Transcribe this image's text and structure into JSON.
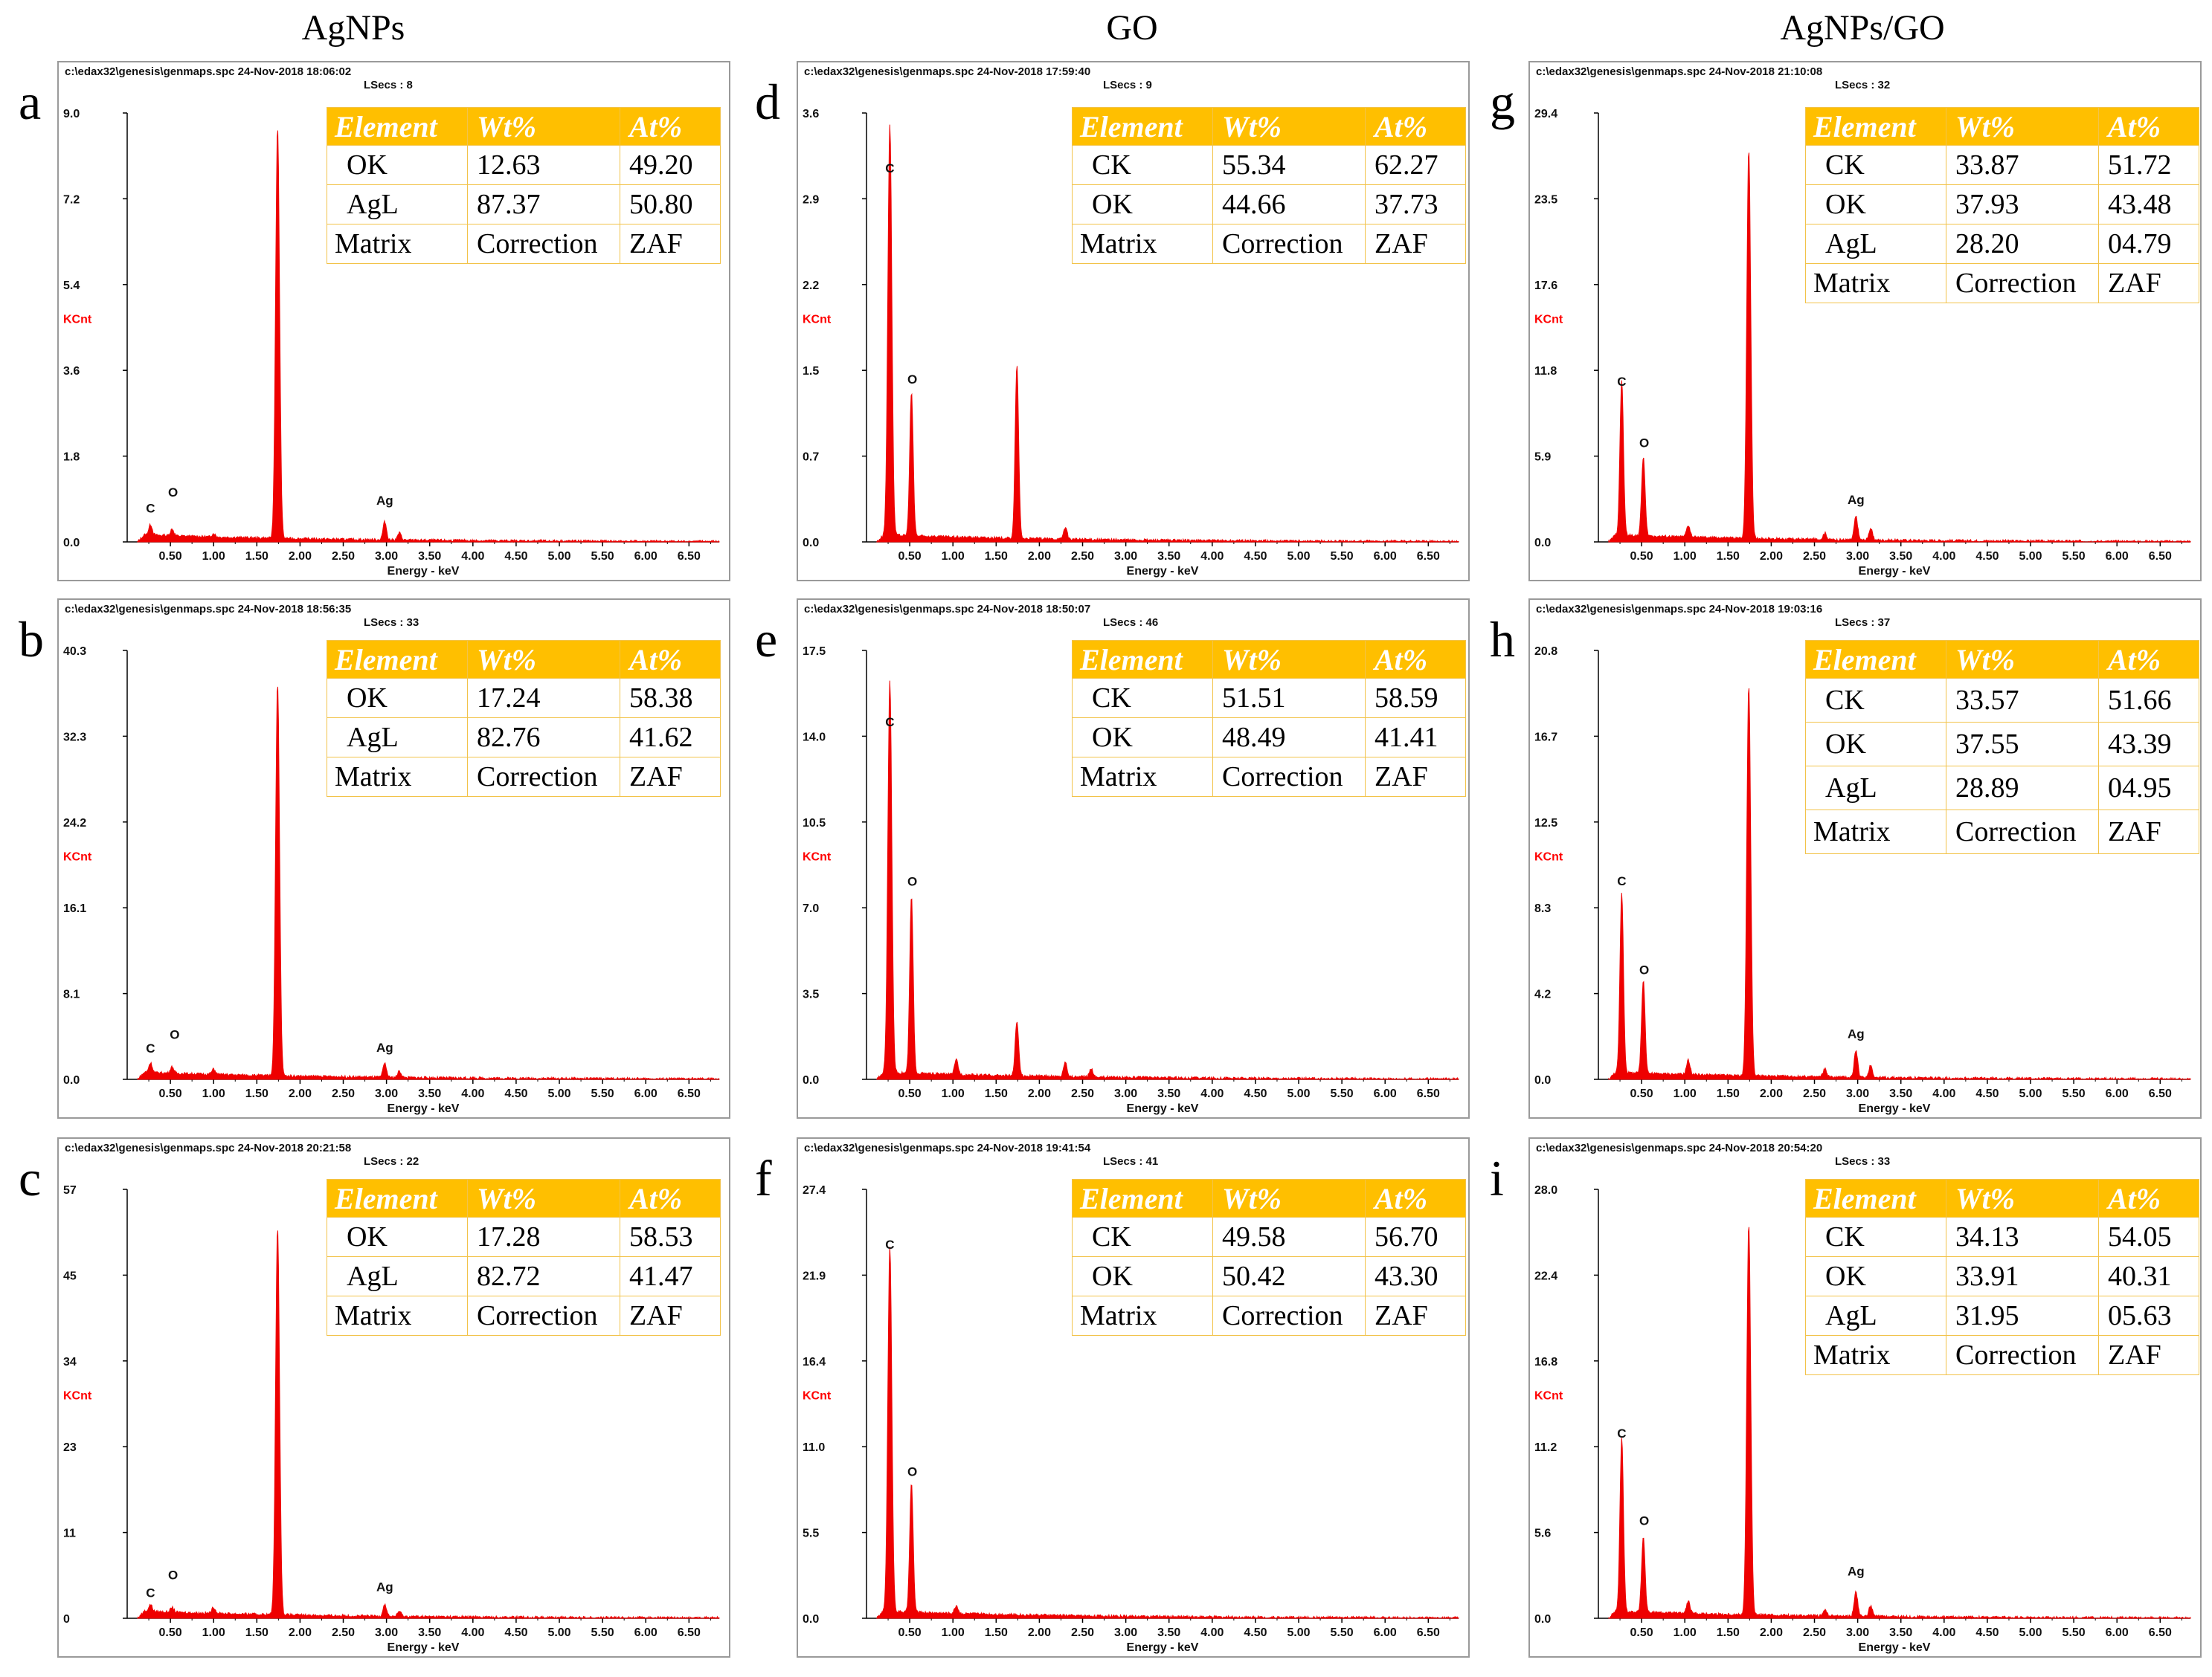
{
  "column_titles": [
    "AgNPs",
    "GO",
    "AgNPs/GO"
  ],
  "axis": {
    "xlabel": "Energy - keV",
    "ylabel": "KCnt",
    "xticks": [
      "0.50",
      "1.00",
      "1.50",
      "2.00",
      "2.50",
      "3.00",
      "3.50",
      "4.00",
      "4.50",
      "5.00",
      "5.50",
      "6.00",
      "6.50"
    ]
  },
  "table_headers": [
    "Element",
    "Wt%",
    "At%"
  ],
  "colors": {
    "spectrum": "#ee0000",
    "table_header": "#ffbf00",
    "table_border": "#f2c34a",
    "ylabel": "#ff0000"
  },
  "chart_data": [
    {
      "id": "a",
      "letter": "a",
      "type": "area",
      "header": "c:\\edax32\\genesis\\genmaps.spc  24-Nov-2018 18:06:02",
      "lsecs": "LSecs : 8",
      "xlabel": "Energy - keV",
      "ylabel": "KCnt",
      "xlim": [
        0,
        6.85
      ],
      "ylim": [
        0,
        9.0
      ],
      "yticks": [
        "0.0",
        "1.8",
        "3.6",
        "5.4",
        "7.2",
        "9.0"
      ],
      "peaks": [
        {
          "label": "C",
          "x": 0.27,
          "y": 0.22
        },
        {
          "label": "O",
          "x": 0.52,
          "y": 0.14
        },
        {
          "label": "",
          "x": 1.0,
          "y": 0.07
        },
        {
          "label": "",
          "x": 1.74,
          "y": 8.6
        },
        {
          "label": "Ag",
          "x": 2.98,
          "y": 0.38
        },
        {
          "label": "",
          "x": 3.15,
          "y": 0.15
        }
      ],
      "peak_labels": [
        {
          "text": "C",
          "x": 0.27,
          "y": 0.62
        },
        {
          "text": "O",
          "x": 0.53,
          "y": 0.95
        },
        {
          "text": "Ag",
          "x": 2.98,
          "y": 0.78
        }
      ],
      "rows": [
        [
          "OK",
          "12.63",
          "49.20"
        ],
        [
          "AgL",
          "87.37",
          "50.80"
        ],
        [
          "Matrix",
          "Correction",
          "ZAF"
        ]
      ]
    },
    {
      "id": "b",
      "letter": "b",
      "type": "area",
      "header": "c:\\edax32\\genesis\\genmaps.spc  24-Nov-2018 18:56:35",
      "lsecs": "LSecs : 33",
      "xlabel": "Energy - keV",
      "ylabel": "KCnt",
      "xlim": [
        0,
        6.85
      ],
      "ylim": [
        0,
        40.3
      ],
      "yticks": [
        "0.0",
        "8.1",
        "16.1",
        "24.2",
        "32.3",
        "40.3"
      ],
      "peaks": [
        {
          "label": "C",
          "x": 0.27,
          "y": 0.9
        },
        {
          "label": "O",
          "x": 0.52,
          "y": 0.6
        },
        {
          "label": "",
          "x": 1.0,
          "y": 0.5
        },
        {
          "label": "",
          "x": 1.74,
          "y": 36.8
        },
        {
          "label": "Ag",
          "x": 2.98,
          "y": 1.3
        },
        {
          "label": "",
          "x": 3.15,
          "y": 0.6
        }
      ],
      "peak_labels": [
        {
          "text": "C",
          "x": 0.27,
          "y": 2.5
        },
        {
          "text": "O",
          "x": 0.55,
          "y": 3.8
        },
        {
          "text": "Ag",
          "x": 2.98,
          "y": 2.6
        }
      ],
      "rows": [
        [
          "OK",
          "17.24",
          "58.38"
        ],
        [
          "AgL",
          "82.76",
          "41.62"
        ],
        [
          "Matrix",
          "Correction",
          "ZAF"
        ]
      ]
    },
    {
      "id": "c",
      "letter": "c",
      "type": "area",
      "header": "c:\\edax32\\genesis\\genmaps.spc  24-Nov-2018 20:21:58",
      "lsecs": "LSecs : 22",
      "xlabel": "Energy - keV",
      "ylabel": "KCnt",
      "xlim": [
        0,
        6.85
      ],
      "ylim": [
        0,
        57
      ],
      "yticks": [
        "0",
        "11",
        "23",
        "34",
        "45",
        "57"
      ],
      "peaks": [
        {
          "label": "C",
          "x": 0.27,
          "y": 0.9
        },
        {
          "label": "O",
          "x": 0.52,
          "y": 0.6
        },
        {
          "label": "",
          "x": 1.0,
          "y": 0.8
        },
        {
          "label": "",
          "x": 1.74,
          "y": 51.5
        },
        {
          "label": "Ag",
          "x": 2.98,
          "y": 1.6
        },
        {
          "label": "",
          "x": 3.15,
          "y": 0.7
        }
      ],
      "peak_labels": [
        {
          "text": "C",
          "x": 0.27,
          "y": 2.8
        },
        {
          "text": "O",
          "x": 0.53,
          "y": 5.2
        },
        {
          "text": "Ag",
          "x": 2.98,
          "y": 3.6
        }
      ],
      "rows": [
        [
          "OK",
          "17.28",
          "58.53"
        ],
        [
          "AgL",
          "82.72",
          "41.47"
        ],
        [
          "Matrix",
          "Correction",
          "ZAF"
        ]
      ]
    },
    {
      "id": "d",
      "letter": "d",
      "type": "area",
      "header": "c:\\edax32\\genesis\\genmaps.spc  24-Nov-2018 17:59:40",
      "lsecs": "LSecs : 9",
      "xlabel": "Energy - keV",
      "ylabel": "KCnt",
      "xlim": [
        0,
        6.85
      ],
      "ylim": [
        0,
        3.6
      ],
      "yticks": [
        "0.0",
        "0.7",
        "1.5",
        "2.2",
        "2.9",
        "3.6"
      ],
      "peaks": [
        {
          "label": "C",
          "x": 0.27,
          "y": 3.45
        },
        {
          "label": "O",
          "x": 0.52,
          "y": 1.2
        },
        {
          "label": "",
          "x": 1.74,
          "y": 1.45
        },
        {
          "label": "",
          "x": 2.3,
          "y": 0.1
        }
      ],
      "peak_labels": [
        {
          "text": "C",
          "x": 0.27,
          "y": 3.1
        },
        {
          "text": "O",
          "x": 0.53,
          "y": 1.33
        }
      ],
      "rows": [
        [
          "CK",
          "55.34",
          "62.27"
        ],
        [
          "OK",
          "44.66",
          "37.73"
        ],
        [
          "Matrix",
          "Correction",
          "ZAF"
        ]
      ]
    },
    {
      "id": "e",
      "letter": "e",
      "type": "area",
      "header": "c:\\edax32\\genesis\\genmaps.spc  24-Nov-2018 18:50:07",
      "lsecs": "LSecs : 46",
      "xlabel": "Energy - keV",
      "ylabel": "KCnt",
      "xlim": [
        0,
        6.85
      ],
      "ylim": [
        0,
        17.5
      ],
      "yticks": [
        "0.0",
        "3.5",
        "7.0",
        "10.5",
        "14.0",
        "17.5"
      ],
      "peaks": [
        {
          "label": "C",
          "x": 0.27,
          "y": 16.0
        },
        {
          "label": "O",
          "x": 0.52,
          "y": 7.2
        },
        {
          "label": "",
          "x": 1.04,
          "y": 0.6
        },
        {
          "label": "",
          "x": 1.74,
          "y": 2.2
        },
        {
          "label": "",
          "x": 2.3,
          "y": 0.6
        },
        {
          "label": "",
          "x": 2.6,
          "y": 0.35
        }
      ],
      "peak_labels": [
        {
          "text": "C",
          "x": 0.27,
          "y": 14.4
        },
        {
          "text": "O",
          "x": 0.53,
          "y": 7.9
        }
      ],
      "rows": [
        [
          "CK",
          "51.51",
          "58.59"
        ],
        [
          "OK",
          "48.49",
          "41.41"
        ],
        [
          "Matrix",
          "Correction",
          "ZAF"
        ]
      ]
    },
    {
      "id": "f",
      "letter": "f",
      "type": "area",
      "header": "c:\\edax32\\genesis\\genmaps.spc  24-Nov-2018 19:41:54",
      "lsecs": "LSecs : 41",
      "xlabel": "Energy - keV",
      "ylabel": "KCnt",
      "xlim": [
        0,
        6.85
      ],
      "ylim": [
        0,
        27.4
      ],
      "yticks": [
        "0.0",
        "5.5",
        "11.0",
        "16.4",
        "21.9",
        "27.4"
      ],
      "peaks": [
        {
          "label": "C",
          "x": 0.27,
          "y": 23.3
        },
        {
          "label": "O",
          "x": 0.52,
          "y": 8.2
        },
        {
          "label": "",
          "x": 1.04,
          "y": 0.5
        }
      ],
      "peak_labels": [
        {
          "text": "C",
          "x": 0.27,
          "y": 23.6
        },
        {
          "text": "O",
          "x": 0.53,
          "y": 9.1
        }
      ],
      "rows": [
        [
          "CK",
          "49.58",
          "56.70"
        ],
        [
          "OK",
          "50.42",
          "43.30"
        ],
        [
          "Matrix",
          "Correction",
          "ZAF"
        ]
      ]
    },
    {
      "id": "g",
      "letter": "g",
      "type": "area",
      "header": "c:\\edax32\\genesis\\genmaps.spc  24-Nov-2018 21:10:08",
      "lsecs": "LSecs : 32",
      "xlabel": "Energy - keV",
      "ylabel": "KCnt",
      "xlim": [
        0,
        6.85
      ],
      "ylim": [
        0,
        29.4
      ],
      "yticks": [
        "0.0",
        "5.9",
        "11.8",
        "17.6",
        "23.5",
        "29.4"
      ],
      "peaks": [
        {
          "label": "C",
          "x": 0.27,
          "y": 10.6
        },
        {
          "label": "O",
          "x": 0.52,
          "y": 5.4
        },
        {
          "label": "",
          "x": 1.04,
          "y": 0.8
        },
        {
          "label": "",
          "x": 1.74,
          "y": 26.7
        },
        {
          "label": "",
          "x": 2.62,
          "y": 0.45
        },
        {
          "label": "Ag",
          "x": 2.98,
          "y": 1.6
        },
        {
          "label": "",
          "x": 3.15,
          "y": 0.8
        }
      ],
      "peak_labels": [
        {
          "text": "C",
          "x": 0.27,
          "y": 10.7
        },
        {
          "text": "O",
          "x": 0.53,
          "y": 6.5
        },
        {
          "text": "Ag",
          "x": 2.98,
          "y": 2.6
        }
      ],
      "rows": [
        [
          "CK",
          "33.87",
          "51.72"
        ],
        [
          "OK",
          "37.93",
          "43.48"
        ],
        [
          "AgL",
          "28.20",
          "04.79"
        ],
        [
          "Matrix",
          "Correction",
          "ZAF"
        ]
      ]
    },
    {
      "id": "h",
      "letter": "h",
      "type": "area",
      "header": "c:\\edax32\\genesis\\genmaps.spc  24-Nov-2018 19:03:16",
      "lsecs": "LSecs : 37",
      "xlabel": "Energy - keV",
      "ylabel": "KCnt",
      "xlim": [
        0,
        6.85
      ],
      "ylim": [
        0,
        20.8
      ],
      "yticks": [
        "0.0",
        "4.2",
        "8.3",
        "12.5",
        "16.7",
        "20.8"
      ],
      "peaks": [
        {
          "label": "C",
          "x": 0.27,
          "y": 8.7
        },
        {
          "label": "O",
          "x": 0.52,
          "y": 4.5
        },
        {
          "label": "",
          "x": 1.04,
          "y": 0.7
        },
        {
          "label": "",
          "x": 1.74,
          "y": 18.9
        },
        {
          "label": "",
          "x": 2.62,
          "y": 0.4
        },
        {
          "label": "Ag",
          "x": 2.98,
          "y": 1.3
        },
        {
          "label": "",
          "x": 3.15,
          "y": 0.6
        }
      ],
      "peak_labels": [
        {
          "text": "C",
          "x": 0.27,
          "y": 9.4
        },
        {
          "text": "O",
          "x": 0.53,
          "y": 5.1
        },
        {
          "text": "Ag",
          "x": 2.98,
          "y": 2.0
        }
      ],
      "rows": [
        [
          "CK",
          "33.57",
          "51.66"
        ],
        [
          "OK",
          "37.55",
          "43.39"
        ],
        [
          "AgL",
          "28.89",
          "04.95"
        ],
        [
          "Matrix",
          "Correction",
          "ZAF"
        ]
      ]
    },
    {
      "id": "i",
      "letter": "i",
      "type": "area",
      "header": "c:\\edax32\\genesis\\genmaps.spc  24-Nov-2018 20:54:20",
      "lsecs": "LSecs : 33",
      "xlabel": "Energy - keV",
      "ylabel": "KCnt",
      "xlim": [
        0,
        6.85
      ],
      "ylim": [
        0,
        28.0
      ],
      "yticks": [
        "0.0",
        "5.6",
        "11.2",
        "16.8",
        "22.4",
        "28.0"
      ],
      "peaks": [
        {
          "label": "C",
          "x": 0.27,
          "y": 11.3
        },
        {
          "label": "O",
          "x": 0.52,
          "y": 4.9
        },
        {
          "label": "",
          "x": 1.04,
          "y": 0.8
        },
        {
          "label": "",
          "x": 1.74,
          "y": 25.5
        },
        {
          "label": "",
          "x": 2.62,
          "y": 0.4
        },
        {
          "label": "Ag",
          "x": 2.98,
          "y": 1.6
        },
        {
          "label": "",
          "x": 3.15,
          "y": 0.7
        }
      ],
      "peak_labels": [
        {
          "text": "C",
          "x": 0.27,
          "y": 11.8
        },
        {
          "text": "O",
          "x": 0.53,
          "y": 6.1
        },
        {
          "text": "Ag",
          "x": 2.98,
          "y": 2.8
        }
      ],
      "rows": [
        [
          "CK",
          "34.13",
          "54.05"
        ],
        [
          "OK",
          "33.91",
          "40.31"
        ],
        [
          "AgL",
          "31.95",
          "05.63"
        ],
        [
          "Matrix",
          "Correction",
          "ZAF"
        ]
      ]
    }
  ]
}
